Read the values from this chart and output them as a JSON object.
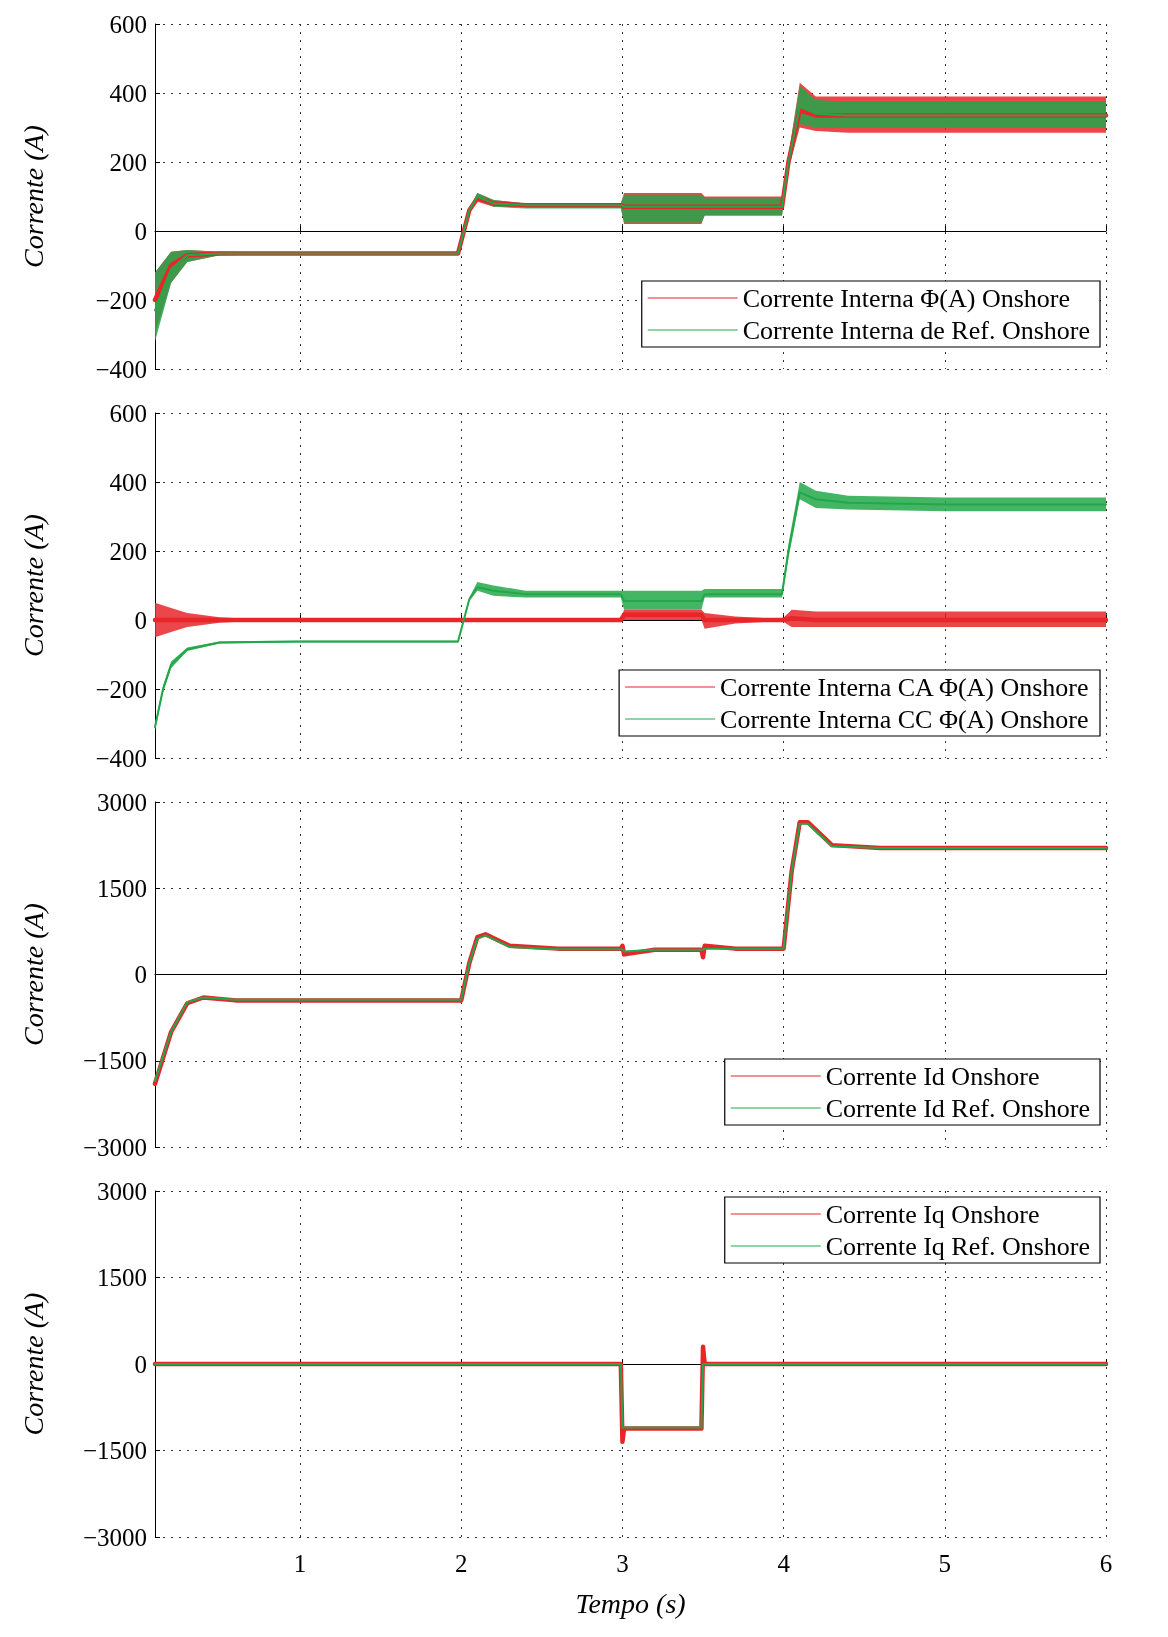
{
  "chart_data": [
    {
      "type": "line",
      "ylabel": "Corrente (A)",
      "xlim": [
        0.1,
        6
      ],
      "xticks": [
        1,
        2,
        3,
        4,
        5,
        6
      ],
      "ylim": [
        -400,
        600
      ],
      "yticks": [
        -400,
        -200,
        0,
        200,
        400,
        600
      ],
      "grid": true,
      "legend": "bottom right",
      "tick_labels": "y",
      "marker": "none",
      "line_style": "solid",
      "x": [
        0.1,
        0.2,
        0.3,
        0.5,
        1,
        1.5,
        1.98,
        2.05,
        2.1,
        2.2,
        2.4,
        2.99,
        3.01,
        3.49,
        3.51,
        3.99,
        4.03,
        4.1,
        4.2,
        4.4,
        5,
        6
      ],
      "series": [
        {
          "name": "Corrente Interna Φ(A) Onshore",
          "color": "#e8262a",
          "values": [
            -200,
            -100,
            -70,
            -65,
            -65,
            -65,
            -65,
            60,
            95,
            80,
            75,
            75,
            70,
            70,
            70,
            70,
            200,
            350,
            335,
            335,
            335,
            335
          ],
          "lower": [
            -300,
            -150,
            -90,
            -70,
            -68,
            -68,
            -68,
            55,
            85,
            70,
            70,
            70,
            20,
            20,
            45,
            45,
            180,
            300,
            290,
            285,
            285,
            285
          ],
          "upper": [
            -120,
            -60,
            -55,
            -60,
            -62,
            -62,
            -62,
            65,
            110,
            90,
            80,
            80,
            110,
            110,
            100,
            100,
            220,
            430,
            390,
            390,
            390,
            390
          ]
        },
        {
          "name": "Corrente Interna de Ref. Onshore",
          "color": "#22a84a",
          "values": [
            -230,
            -110,
            -70,
            -65,
            -65,
            -65,
            -65,
            60,
            100,
            80,
            75,
            75,
            70,
            70,
            70,
            70,
            200,
            360,
            340,
            335,
            335,
            335
          ],
          "lower": [
            -320,
            -150,
            -90,
            -70,
            -68,
            -68,
            -68,
            55,
            90,
            70,
            65,
            65,
            25,
            25,
            45,
            45,
            180,
            310,
            300,
            300,
            300,
            300
          ],
          "upper": [
            -120,
            -60,
            -55,
            -60,
            -62,
            -62,
            -62,
            65,
            110,
            90,
            80,
            80,
            105,
            105,
            95,
            95,
            220,
            420,
            380,
            375,
            375,
            375
          ]
        }
      ]
    },
    {
      "type": "line",
      "ylabel": "Corrente (A)",
      "xlim": [
        0.1,
        6
      ],
      "xticks": [
        1,
        2,
        3,
        4,
        5,
        6
      ],
      "ylim": [
        -400,
        600
      ],
      "yticks": [
        -400,
        -200,
        0,
        200,
        400,
        600
      ],
      "grid": true,
      "legend": "bottom right",
      "tick_labels": "y",
      "marker": "none",
      "line_style": "solid",
      "series": [
        {
          "name": "Corrente Interna CA Φ(A) Onshore",
          "color": "#e8262a",
          "x": [
            0.1,
            0.2,
            0.3,
            0.5,
            0.7,
            1,
            2,
            2.99,
            3.01,
            3.49,
            3.51,
            3.7,
            3.99,
            4.05,
            4.2,
            5,
            6
          ],
          "values": [
            0,
            0,
            0,
            0,
            0,
            0,
            0,
            0,
            15,
            15,
            0,
            0,
            0,
            5,
            0,
            0,
            0
          ],
          "lower": [
            -50,
            -35,
            -20,
            -8,
            -3,
            -3,
            -3,
            -3,
            0,
            0,
            -25,
            -10,
            -3,
            -20,
            -20,
            -20,
            -20
          ],
          "upper": [
            50,
            35,
            20,
            8,
            3,
            3,
            3,
            3,
            30,
            30,
            20,
            10,
            3,
            30,
            25,
            25,
            25
          ]
        },
        {
          "name": "Corrente Interna CC Φ(A) Onshore",
          "color": "#22a84a",
          "x": [
            0.1,
            0.15,
            0.2,
            0.3,
            0.5,
            1,
            1.98,
            2.05,
            2.1,
            2.2,
            2.4,
            2.99,
            3.01,
            3.49,
            3.51,
            3.99,
            4.03,
            4.1,
            4.2,
            4.4,
            5,
            6
          ],
          "values": [
            -310,
            -200,
            -130,
            -85,
            -65,
            -62,
            -62,
            60,
            95,
            85,
            75,
            75,
            55,
            55,
            75,
            75,
            200,
            370,
            350,
            340,
            335,
            335
          ],
          "lower": [
            -320,
            -210,
            -140,
            -90,
            -68,
            -65,
            -65,
            55,
            85,
            70,
            65,
            65,
            30,
            30,
            65,
            65,
            180,
            350,
            325,
            320,
            315,
            315
          ],
          "upper": [
            -300,
            -190,
            -120,
            -80,
            -62,
            -60,
            -60,
            65,
            110,
            100,
            85,
            85,
            85,
            85,
            90,
            90,
            220,
            400,
            375,
            360,
            355,
            355
          ]
        }
      ]
    },
    {
      "type": "line",
      "ylabel": "Corrente (A)",
      "xlim": [
        0.1,
        6
      ],
      "xticks": [
        1,
        2,
        3,
        4,
        5,
        6
      ],
      "ylim": [
        -3000,
        3000
      ],
      "yticks": [
        -3000,
        -1500,
        0,
        1500,
        3000
      ],
      "grid": true,
      "legend": "bottom right",
      "tick_labels": "y",
      "marker": "none",
      "line_style": "solid",
      "x": [
        0.1,
        0.2,
        0.3,
        0.4,
        0.6,
        1,
        2,
        2.05,
        2.1,
        2.15,
        2.3,
        2.6,
        2.99,
        3.0,
        3.01,
        3.2,
        3.49,
        3.5,
        3.51,
        3.7,
        4,
        4.05,
        4.1,
        4.15,
        4.3,
        4.6,
        5,
        6
      ],
      "series": [
        {
          "name": "Corrente Id Onshore",
          "color": "#e8262a",
          "values": [
            -1900,
            -1000,
            -500,
            -400,
            -450,
            -450,
            -450,
            200,
            650,
            700,
            500,
            450,
            450,
            500,
            350,
            430,
            430,
            300,
            500,
            450,
            450,
            1800,
            2650,
            2650,
            2250,
            2200,
            2200,
            2200
          ]
        },
        {
          "name": "Corrente Id Ref. Onshore",
          "color": "#22a84a",
          "values": [
            -1850,
            -1000,
            -480,
            -400,
            -440,
            -440,
            -440,
            200,
            620,
            680,
            480,
            440,
            440,
            440,
            400,
            430,
            430,
            430,
            450,
            450,
            450,
            1800,
            2620,
            2620,
            2230,
            2200,
            2200,
            2200
          ]
        }
      ]
    },
    {
      "type": "line",
      "ylabel": "Corrente (A)",
      "xlabel": "Tempo (s)",
      "xlim": [
        0.1,
        6
      ],
      "xticks": [
        1,
        2,
        3,
        4,
        5,
        6
      ],
      "ylim": [
        -3000,
        3000
      ],
      "yticks": [
        -3000,
        -1500,
        0,
        1500,
        3000
      ],
      "grid": true,
      "legend": "top right",
      "marker": "none",
      "line_style": "solid",
      "x": [
        0.1,
        1,
        2,
        2.99,
        3.0,
        3.01,
        3.49,
        3.5,
        3.51,
        4,
        5,
        6
      ],
      "series": [
        {
          "name": "Corrente Iq Onshore",
          "color": "#e8262a",
          "values": [
            0,
            0,
            0,
            0,
            -1350,
            -1120,
            -1120,
            300,
            0,
            0,
            0,
            0
          ]
        },
        {
          "name": "Corrente Iq Ref. Onshore",
          "color": "#22a84a",
          "values": [
            0,
            0,
            0,
            0,
            -1100,
            -1100,
            -1100,
            0,
            0,
            0,
            0,
            0
          ]
        }
      ]
    }
  ]
}
